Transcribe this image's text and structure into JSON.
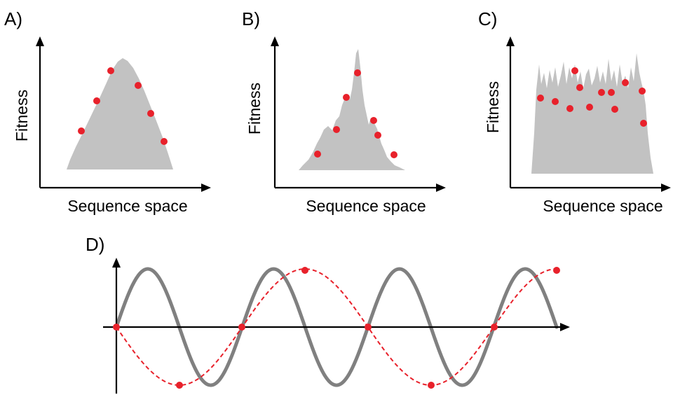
{
  "colors": {
    "landscape": "#c2c2c2",
    "point": "#e8212b",
    "wave": "#808080",
    "axis": "#000000"
  },
  "panels": [
    {
      "letter": "A)",
      "ylabel": "Fitness",
      "xlabel": "Sequence space",
      "landscape": "smooth-single-peak"
    },
    {
      "letter": "B)",
      "ylabel": "Fitness",
      "xlabel": "Sequence space",
      "landscape": "rugged-multi-peak"
    },
    {
      "letter": "C)",
      "ylabel": "Fitness",
      "xlabel": "Sequence space",
      "landscape": "very-rugged-plateau"
    }
  ],
  "panel_d": {
    "letter": "D)"
  }
}
